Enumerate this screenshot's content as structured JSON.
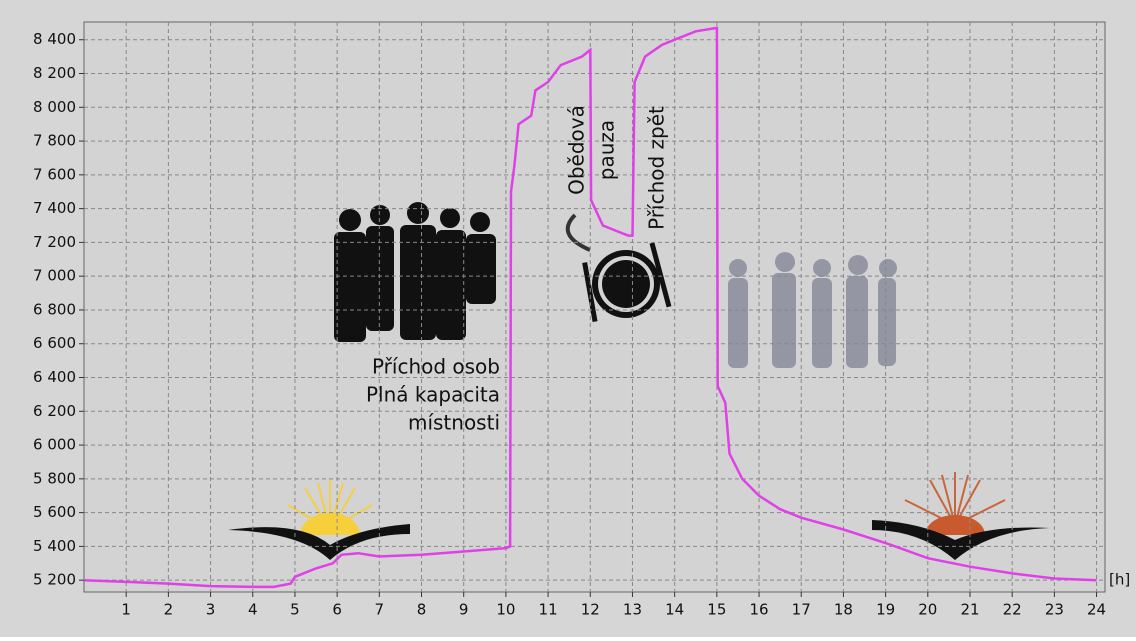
{
  "chart_data": {
    "type": "line",
    "x": [
      0,
      1,
      2,
      3,
      4,
      4.5,
      4.9,
      5,
      5.5,
      5.9,
      6.1,
      6.5,
      7,
      8,
      9,
      10,
      10.1,
      10.12,
      10.2,
      10.3,
      10.6,
      10.7,
      11,
      11.3,
      11.8,
      12,
      12.02,
      12.3,
      12.6,
      12.9,
      13,
      13.05,
      13.3,
      13.7,
      14,
      14.5,
      15,
      15.02,
      15.2,
      15.3,
      15.6,
      16,
      16.5,
      17,
      18,
      19,
      20,
      21,
      22,
      23,
      24
    ],
    "values": [
      5200,
      5190,
      5180,
      5165,
      5160,
      5160,
      5180,
      5220,
      5270,
      5300,
      5350,
      5360,
      5340,
      5350,
      5370,
      5390,
      5400,
      7500,
      7650,
      7900,
      7950,
      8100,
      8150,
      8250,
      8300,
      8340,
      7450,
      7300,
      7270,
      7240,
      7240,
      8150,
      8300,
      8370,
      8400,
      8450,
      8470,
      6350,
      6250,
      5950,
      5800,
      5700,
      5620,
      5570,
      5500,
      5420,
      5330,
      5280,
      5240,
      5210,
      5200
    ],
    "color": "#e040e8",
    "xlim": [
      0,
      24.2
    ],
    "ylim": [
      5130,
      8505
    ],
    "xticks": [
      1,
      2,
      3,
      4,
      5,
      6,
      7,
      8,
      9,
      10,
      11,
      12,
      13,
      14,
      15,
      16,
      17,
      18,
      19,
      20,
      21,
      22,
      23,
      24
    ],
    "yticks": [
      {
        "value": 5200,
        "label": "5 200"
      },
      {
        "value": 5400,
        "label": "5 400"
      },
      {
        "value": 5600,
        "label": "5 600"
      },
      {
        "value": 5800,
        "label": "5 800"
      },
      {
        "value": 6000,
        "label": "6 000"
      },
      {
        "value": 6200,
        "label": "6 200"
      },
      {
        "value": 6400,
        "label": "6 400"
      },
      {
        "value": 6600,
        "label": "6 600"
      },
      {
        "value": 6800,
        "label": "6 800"
      },
      {
        "value": 7000,
        "label": "7 000"
      },
      {
        "value": 7200,
        "label": "7 200"
      },
      {
        "value": 7400,
        "label": "7 400"
      },
      {
        "value": 7600,
        "label": "7 600"
      },
      {
        "value": 7800,
        "label": "7 800"
      },
      {
        "value": 8000,
        "label": "8 000"
      },
      {
        "value": 8200,
        "label": "8 200"
      },
      {
        "value": 8400,
        "label": "8 400"
      }
    ],
    "x_label": "[h]",
    "grid": true,
    "annotations": [
      "Příchod osob",
      "Plná kapacita",
      "místnosti",
      "Obědová",
      "pauza",
      "Příchod zpět"
    ]
  }
}
